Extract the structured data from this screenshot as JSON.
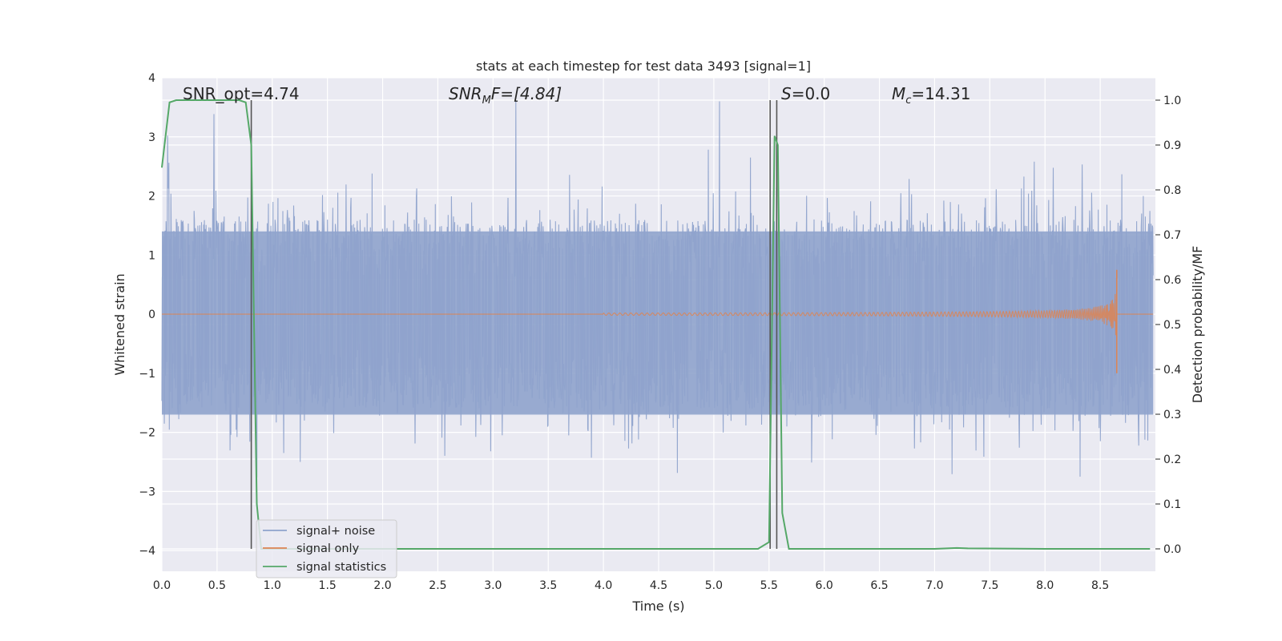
{
  "chart_data": {
    "type": "line",
    "title": "stats at each timestep for test data 3493 [signal=1]",
    "xlabel": "Time (s)",
    "ylabel_left": "Whitened strain",
    "ylabel_right": "Detection probability/MF",
    "xlim": [
      0.0,
      9.0
    ],
    "ylim_left": [
      -4.35,
      4.0
    ],
    "ylim_right": [
      -0.05,
      1.05
    ],
    "x_ticks": [
      "0.0",
      "0.5",
      "1.0",
      "1.5",
      "2.0",
      "2.5",
      "3.0",
      "3.5",
      "4.0",
      "4.5",
      "5.0",
      "5.5",
      "6.0",
      "6.5",
      "7.0",
      "7.5",
      "8.0",
      "8.5"
    ],
    "y_left_ticks": [
      "−4",
      "−3",
      "−2",
      "−1",
      "0",
      "1",
      "2",
      "3",
      "4"
    ],
    "y_right_ticks": [
      "0.0",
      "0.1",
      "0.2",
      "0.3",
      "0.4",
      "0.5",
      "0.6",
      "0.7",
      "0.8",
      "0.9",
      "1.0"
    ],
    "grid": true,
    "legend_position": "lower-left",
    "annotations": [
      {
        "text": "SNR_opt=4.74",
        "x": 0.2
      },
      {
        "main": "SNR",
        "sub": "M",
        "rest": "F=[4.84]",
        "x": 2.6
      },
      {
        "main": "S",
        "sub": "",
        "rest": "=0.0",
        "x": 5.6
      },
      {
        "main": "M",
        "sub": "c",
        "rest": "=14.31",
        "x": 6.6
      }
    ],
    "vertical_lines_x": [
      0.81,
      5.51,
      5.57
    ],
    "colors": {
      "noise": "#8fa3cc",
      "signal": "#dd8452",
      "stats": "#55a868",
      "vline": "#555555",
      "background": "#eaeaf2",
      "grid": "#ffffff"
    },
    "series": [
      {
        "name": "signal+ noise",
        "axis": "left",
        "description_range": [
          -3.5,
          3.6
        ],
        "typical_band": [
          -1.8,
          2.0
        ]
      },
      {
        "name": "signal only",
        "axis": "left",
        "chirp_start": 4.0,
        "chirp_peak_time": 8.65,
        "chirp_peak_amplitude": 0.75,
        "chirp_min": -1.0
      },
      {
        "name": "signal statistics",
        "axis": "right",
        "x": [
          0.0,
          0.07,
          0.13,
          0.2,
          0.3,
          0.4,
          0.5,
          0.6,
          0.7,
          0.76,
          0.81,
          0.86,
          0.9,
          1.0,
          2.0,
          3.0,
          4.0,
          5.0,
          5.4,
          5.5,
          5.55,
          5.58,
          5.62,
          5.68,
          6.0,
          7.0,
          7.2,
          7.3,
          8.0,
          8.5,
          8.95
        ],
        "y": [
          0.85,
          0.995,
          1.0,
          1.0,
          1.0,
          1.0,
          1.0,
          1.0,
          1.0,
          0.995,
          0.9,
          0.1,
          0.0,
          0.0,
          0.0,
          0.0,
          0.0,
          0.0,
          0.0,
          0.015,
          0.92,
          0.9,
          0.08,
          0.0,
          0.0,
          0.0,
          0.002,
          0.001,
          0.0,
          0.0,
          0.0
        ]
      }
    ]
  }
}
